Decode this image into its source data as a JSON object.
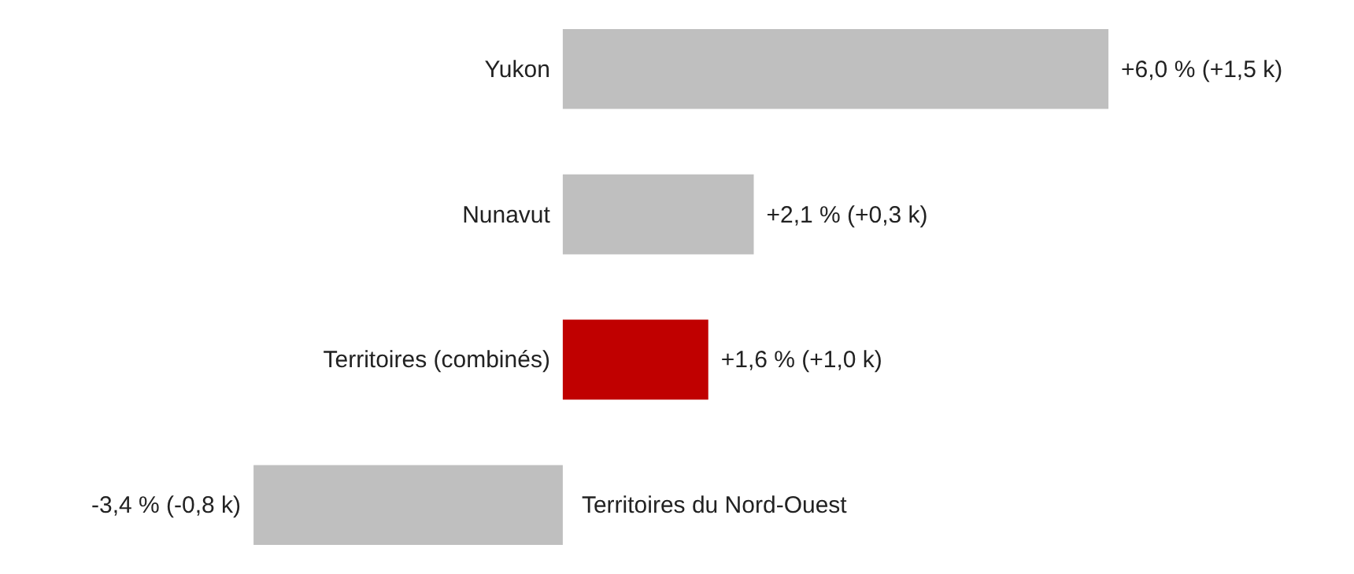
{
  "chart_data": {
    "type": "bar",
    "orientation": "horizontal",
    "categories": [
      "Yukon",
      "Nunavut",
      "Territoires (combinés)",
      "Territoires du Nord-Ouest"
    ],
    "values": [
      6.0,
      2.1,
      1.6,
      -3.4
    ],
    "colors": [
      "#bfbfbf",
      "#bfbfbf",
      "#c00000",
      "#bfbfbf"
    ],
    "value_labels": [
      "+6,0 % (+1,5 k)",
      "+2,1 % (+0,3 k)",
      "+1,6 % (+1,0 k)",
      "-3,4 % (-0,8 k)"
    ],
    "grid": false
  }
}
